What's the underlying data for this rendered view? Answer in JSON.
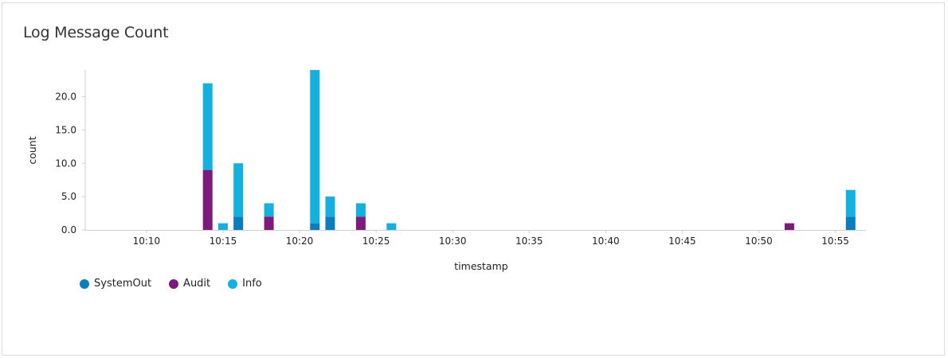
{
  "panel": {
    "title": "Log Message Count"
  },
  "chart_data": {
    "type": "bar",
    "stacked": true,
    "xlabel": "timestamp",
    "ylabel": "count",
    "ylim": [
      0,
      24
    ],
    "y_ticks": [
      "0.0",
      "5.0",
      "10.0",
      "15.0",
      "20.0"
    ],
    "x_ticks": [
      "10:10",
      "10:15",
      "10:20",
      "10:25",
      "10:30",
      "10:35",
      "10:40",
      "10:45",
      "10:50",
      "10:55"
    ],
    "x_range": [
      "10:06",
      "10:57"
    ],
    "legend_position": "bottom-left",
    "series": [
      {
        "name": "SystemOut",
        "color": "#0b7dbd"
      },
      {
        "name": "Audit",
        "color": "#7f1a7d"
      },
      {
        "name": "Info",
        "color": "#12b1e0"
      }
    ],
    "points": [
      {
        "time": "10:14",
        "SystemOut": 0,
        "Audit": 9,
        "Info": 13
      },
      {
        "time": "10:15",
        "SystemOut": 0,
        "Audit": 0,
        "Info": 1
      },
      {
        "time": "10:16",
        "SystemOut": 2,
        "Audit": 0,
        "Info": 8
      },
      {
        "time": "10:18",
        "SystemOut": 0,
        "Audit": 2,
        "Info": 2
      },
      {
        "time": "10:21",
        "SystemOut": 1,
        "Audit": 0,
        "Info": 23
      },
      {
        "time": "10:22",
        "SystemOut": 2,
        "Audit": 0,
        "Info": 3
      },
      {
        "time": "10:24",
        "SystemOut": 0,
        "Audit": 2,
        "Info": 2
      },
      {
        "time": "10:26",
        "SystemOut": 0,
        "Audit": 0,
        "Info": 1
      },
      {
        "time": "10:52",
        "SystemOut": 0,
        "Audit": 1,
        "Info": 0
      },
      {
        "time": "10:56",
        "SystemOut": 2,
        "Audit": 0,
        "Info": 4
      }
    ]
  }
}
